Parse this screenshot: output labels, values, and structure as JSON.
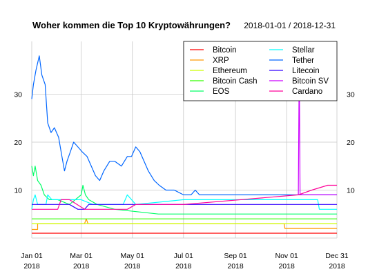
{
  "chart_data": {
    "type": "line",
    "title": "Woher kommen die Top 10 Kryptowährungen?",
    "subtitle": "2018-01-01 / 2018-12-31",
    "xlabel": "",
    "ylabel": "",
    "x_domain": [
      "2018-01-01",
      "2018-12-31"
    ],
    "ylim": [
      0,
      41
    ],
    "y_ticks": [
      10,
      20,
      30
    ],
    "grid": true,
    "legend_placement": "top-right",
    "x_ticks": [
      {
        "date": "2018-01-01",
        "label1": "Jan 01",
        "label2": "2018"
      },
      {
        "date": "2018-03-01",
        "label1": "Mar 01",
        "label2": "2018"
      },
      {
        "date": "2018-05-01",
        "label1": "May 01",
        "label2": "2018"
      },
      {
        "date": "2018-07-01",
        "label1": "Jul 01",
        "label2": "2018"
      },
      {
        "date": "2018-09-01",
        "label1": "Sep 01",
        "label2": "2018"
      },
      {
        "date": "2018-11-01",
        "label1": "Nov 01",
        "label2": "2018"
      },
      {
        "date": "2018-12-31",
        "label1": "Dec 31",
        "label2": "2018"
      }
    ],
    "series": [
      {
        "name": "Bitcoin",
        "color": "#FF0000",
        "points": [
          [
            "2018-01-01",
            1
          ],
          [
            "2018-12-31",
            1
          ]
        ]
      },
      {
        "name": "XRP",
        "color": "#FF9900",
        "points": [
          [
            "2018-01-01",
            1.8
          ],
          [
            "2018-01-08",
            1.8
          ],
          [
            "2018-01-08",
            3
          ],
          [
            "2018-03-05",
            3
          ],
          [
            "2018-03-07",
            4
          ],
          [
            "2018-03-09",
            3
          ],
          [
            "2018-10-29",
            3
          ],
          [
            "2018-10-30",
            2
          ],
          [
            "2018-12-31",
            2
          ]
        ]
      },
      {
        "name": "Ethereum",
        "color": "#CCFF00",
        "points": [
          [
            "2018-01-01",
            3
          ],
          [
            "2018-12-31",
            3
          ]
        ]
      },
      {
        "name": "Bitcoin Cash",
        "color": "#33FF00",
        "points": [
          [
            "2018-01-01",
            4
          ],
          [
            "2018-12-31",
            4
          ]
        ]
      },
      {
        "name": "EOS",
        "color": "#00FF66",
        "points": [
          [
            "2018-01-01",
            15
          ],
          [
            "2018-01-03",
            13
          ],
          [
            "2018-01-05",
            15
          ],
          [
            "2018-01-08",
            12
          ],
          [
            "2018-01-12",
            11
          ],
          [
            "2018-01-16",
            9
          ],
          [
            "2018-01-22",
            8
          ],
          [
            "2018-02-01",
            8
          ],
          [
            "2018-02-15",
            7
          ],
          [
            "2018-03-01",
            9
          ],
          [
            "2018-03-03",
            11
          ],
          [
            "2018-03-06",
            9
          ],
          [
            "2018-03-10",
            8
          ],
          [
            "2018-03-20",
            7
          ],
          [
            "2018-04-10",
            6
          ],
          [
            "2018-06-01",
            5
          ],
          [
            "2018-12-31",
            5
          ]
        ]
      },
      {
        "name": "Stellar",
        "color": "#00FFFF",
        "points": [
          [
            "2018-01-01",
            6
          ],
          [
            "2018-01-03",
            8
          ],
          [
            "2018-01-05",
            9
          ],
          [
            "2018-01-08",
            7
          ],
          [
            "2018-01-18",
            7
          ],
          [
            "2018-01-20",
            9
          ],
          [
            "2018-01-25",
            8
          ],
          [
            "2018-02-10",
            8
          ],
          [
            "2018-03-01",
            8
          ],
          [
            "2018-03-15",
            7
          ],
          [
            "2018-04-20",
            7
          ],
          [
            "2018-04-25",
            9
          ],
          [
            "2018-05-05",
            7
          ],
          [
            "2018-07-01",
            8
          ],
          [
            "2018-12-08",
            8
          ],
          [
            "2018-12-10",
            6
          ],
          [
            "2018-12-31",
            6
          ]
        ]
      },
      {
        "name": "Tether",
        "color": "#0066FF",
        "points": [
          [
            "2018-01-01",
            29
          ],
          [
            "2018-01-03",
            32
          ],
          [
            "2018-01-06",
            35
          ],
          [
            "2018-01-10",
            38
          ],
          [
            "2018-01-13",
            34
          ],
          [
            "2018-01-17",
            32
          ],
          [
            "2018-01-20",
            24
          ],
          [
            "2018-01-24",
            22
          ],
          [
            "2018-01-28",
            23
          ],
          [
            "2018-02-02",
            21
          ],
          [
            "2018-02-06",
            17
          ],
          [
            "2018-02-09",
            14
          ],
          [
            "2018-02-12",
            16
          ],
          [
            "2018-02-16",
            18
          ],
          [
            "2018-02-20",
            20
          ],
          [
            "2018-02-25",
            19
          ],
          [
            "2018-03-02",
            18
          ],
          [
            "2018-03-08",
            17
          ],
          [
            "2018-03-13",
            15
          ],
          [
            "2018-03-18",
            13
          ],
          [
            "2018-03-23",
            12
          ],
          [
            "2018-03-28",
            14
          ],
          [
            "2018-04-04",
            16
          ],
          [
            "2018-04-10",
            16
          ],
          [
            "2018-04-18",
            15
          ],
          [
            "2018-04-25",
            17
          ],
          [
            "2018-04-30",
            17
          ],
          [
            "2018-05-05",
            19
          ],
          [
            "2018-05-10",
            18
          ],
          [
            "2018-05-15",
            16
          ],
          [
            "2018-05-20",
            14
          ],
          [
            "2018-05-27",
            12
          ],
          [
            "2018-06-02",
            11
          ],
          [
            "2018-06-10",
            10
          ],
          [
            "2018-06-20",
            10
          ],
          [
            "2018-07-01",
            9
          ],
          [
            "2018-07-10",
            9
          ],
          [
            "2018-07-15",
            10
          ],
          [
            "2018-07-20",
            9
          ],
          [
            "2018-08-01",
            9
          ],
          [
            "2018-12-31",
            9
          ]
        ]
      },
      {
        "name": "Litecoin",
        "color": "#3300FF",
        "points": [
          [
            "2018-01-01",
            7
          ],
          [
            "2018-02-15",
            7
          ],
          [
            "2018-02-25",
            6
          ],
          [
            "2018-03-05",
            6
          ],
          [
            "2018-03-10",
            7
          ],
          [
            "2018-05-01",
            7
          ],
          [
            "2018-06-01",
            7
          ],
          [
            "2018-07-01",
            7
          ],
          [
            "2018-12-31",
            7
          ]
        ]
      },
      {
        "name": "Bitcoin SV",
        "color": "#CC00FF",
        "points": [
          [
            "2018-11-15",
            9
          ],
          [
            "2018-11-16",
            37
          ],
          [
            "2018-11-17",
            9
          ],
          [
            "2018-12-31",
            9
          ]
        ]
      },
      {
        "name": "Cardano",
        "color": "#FF0099",
        "points": [
          [
            "2018-01-01",
            6
          ],
          [
            "2018-02-01",
            6
          ],
          [
            "2018-02-05",
            8
          ],
          [
            "2018-02-15",
            8
          ],
          [
            "2018-03-05",
            6
          ],
          [
            "2018-04-25",
            6
          ],
          [
            "2018-05-05",
            7
          ],
          [
            "2018-07-01",
            7
          ],
          [
            "2018-11-15",
            9
          ],
          [
            "2018-12-01",
            10
          ],
          [
            "2018-12-20",
            11
          ],
          [
            "2018-12-31",
            11
          ]
        ]
      }
    ]
  }
}
